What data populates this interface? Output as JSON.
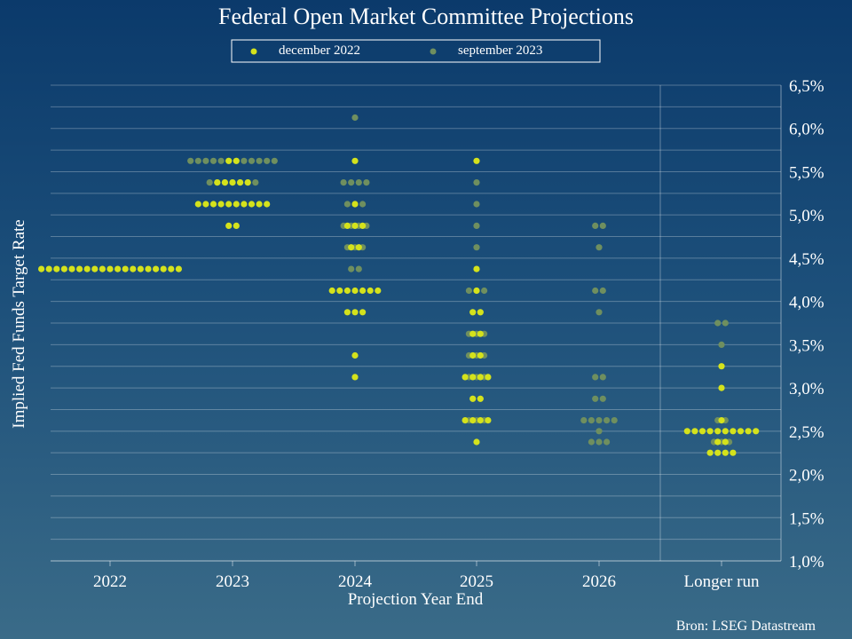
{
  "chart_data": {
    "type": "scatter",
    "title": "Federal Open Market Committee Projections",
    "xlabel": "Projection Year End",
    "ylabel": "Implied Fed Funds Target Rate",
    "source": "Bron: LSEG Datastream",
    "categories": [
      "2022",
      "2023",
      "2024",
      "2025",
      "2026",
      "Longer run"
    ],
    "y_ticks": [
      "1,0%",
      "1,5%",
      "2,0%",
      "2,5%",
      "3,0%",
      "3,5%",
      "4,0%",
      "4,5%",
      "5,0%",
      "5,5%",
      "6,0%",
      "6,5%"
    ],
    "ylim": [
      1.0,
      6.5
    ],
    "grid": true,
    "legend_position": "top-center",
    "colors": {
      "december 2022": "#d4e21c",
      "september 2023": "#6f8f5f"
    },
    "series": [
      {
        "name": "december 2022",
        "points": [
          {
            "x": "2022",
            "y": 4.375,
            "n": 19
          },
          {
            "x": "2023",
            "y": 5.625,
            "n": 2
          },
          {
            "x": "2023",
            "y": 5.375,
            "n": 5
          },
          {
            "x": "2023",
            "y": 5.125,
            "n": 10
          },
          {
            "x": "2023",
            "y": 4.875,
            "n": 2
          },
          {
            "x": "2024",
            "y": 5.625,
            "n": 1
          },
          {
            "x": "2024",
            "y": 5.125,
            "n": 1
          },
          {
            "x": "2024",
            "y": 4.875,
            "n": 3
          },
          {
            "x": "2024",
            "y": 4.625,
            "n": 2
          },
          {
            "x": "2024",
            "y": 4.375,
            "n": 0
          },
          {
            "x": "2024",
            "y": 4.125,
            "n": 7
          },
          {
            "x": "2024",
            "y": 3.875,
            "n": 3
          },
          {
            "x": "2024",
            "y": 3.375,
            "n": 1
          },
          {
            "x": "2024",
            "y": 3.125,
            "n": 1
          },
          {
            "x": "2025",
            "y": 5.625,
            "n": 1
          },
          {
            "x": "2025",
            "y": 4.375,
            "n": 1
          },
          {
            "x": "2025",
            "y": 4.125,
            "n": 1
          },
          {
            "x": "2025",
            "y": 3.875,
            "n": 2
          },
          {
            "x": "2025",
            "y": 3.625,
            "n": 2
          },
          {
            "x": "2025",
            "y": 3.375,
            "n": 2
          },
          {
            "x": "2025",
            "y": 3.125,
            "n": 4
          },
          {
            "x": "2025",
            "y": 2.875,
            "n": 2
          },
          {
            "x": "2025",
            "y": 2.625,
            "n": 4
          },
          {
            "x": "2025",
            "y": 2.375,
            "n": 1
          },
          {
            "x": "Longer run",
            "y": 3.25,
            "n": 1
          },
          {
            "x": "Longer run",
            "y": 3.0,
            "n": 1
          },
          {
            "x": "Longer run",
            "y": 2.625,
            "n": 1
          },
          {
            "x": "Longer run",
            "y": 2.5,
            "n": 10
          },
          {
            "x": "Longer run",
            "y": 2.375,
            "n": 2
          },
          {
            "x": "Longer run",
            "y": 2.25,
            "n": 4
          }
        ]
      },
      {
        "name": "september 2023",
        "points": [
          {
            "x": "2023",
            "y": 5.625,
            "n": 12
          },
          {
            "x": "2023",
            "y": 5.375,
            "n": 7
          },
          {
            "x": "2024",
            "y": 6.125,
            "n": 1
          },
          {
            "x": "2024",
            "y": 5.375,
            "n": 4
          },
          {
            "x": "2024",
            "y": 5.125,
            "n": 3
          },
          {
            "x": "2024",
            "y": 4.875,
            "n": 4
          },
          {
            "x": "2024",
            "y": 4.625,
            "n": 3
          },
          {
            "x": "2024",
            "y": 4.375,
            "n": 2
          },
          {
            "x": "2025",
            "y": 5.375,
            "n": 1
          },
          {
            "x": "2025",
            "y": 5.125,
            "n": 1
          },
          {
            "x": "2025",
            "y": 4.875,
            "n": 1
          },
          {
            "x": "2025",
            "y": 4.625,
            "n": 1
          },
          {
            "x": "2025",
            "y": 4.125,
            "n": 3
          },
          {
            "x": "2025",
            "y": 3.875,
            "n": 2
          },
          {
            "x": "2025",
            "y": 3.625,
            "n": 3
          },
          {
            "x": "2025",
            "y": 3.375,
            "n": 3
          },
          {
            "x": "2025",
            "y": 3.125,
            "n": 3
          },
          {
            "x": "2025",
            "y": 2.875,
            "n": 2
          },
          {
            "x": "2025",
            "y": 2.625,
            "n": 3
          },
          {
            "x": "2026",
            "y": 4.875,
            "n": 2
          },
          {
            "x": "2026",
            "y": 4.625,
            "n": 1
          },
          {
            "x": "2026",
            "y": 4.125,
            "n": 2
          },
          {
            "x": "2026",
            "y": 3.875,
            "n": 1
          },
          {
            "x": "2026",
            "y": 3.125,
            "n": 2
          },
          {
            "x": "2026",
            "y": 2.875,
            "n": 2
          },
          {
            "x": "2026",
            "y": 2.625,
            "n": 5
          },
          {
            "x": "2026",
            "y": 2.5,
            "n": 1
          },
          {
            "x": "2026",
            "y": 2.375,
            "n": 3
          },
          {
            "x": "Longer run",
            "y": 3.75,
            "n": 2
          },
          {
            "x": "Longer run",
            "y": 3.5,
            "n": 1
          },
          {
            "x": "Longer run",
            "y": 2.625,
            "n": 2
          },
          {
            "x": "Longer run",
            "y": 2.375,
            "n": 3
          }
        ]
      }
    ]
  }
}
